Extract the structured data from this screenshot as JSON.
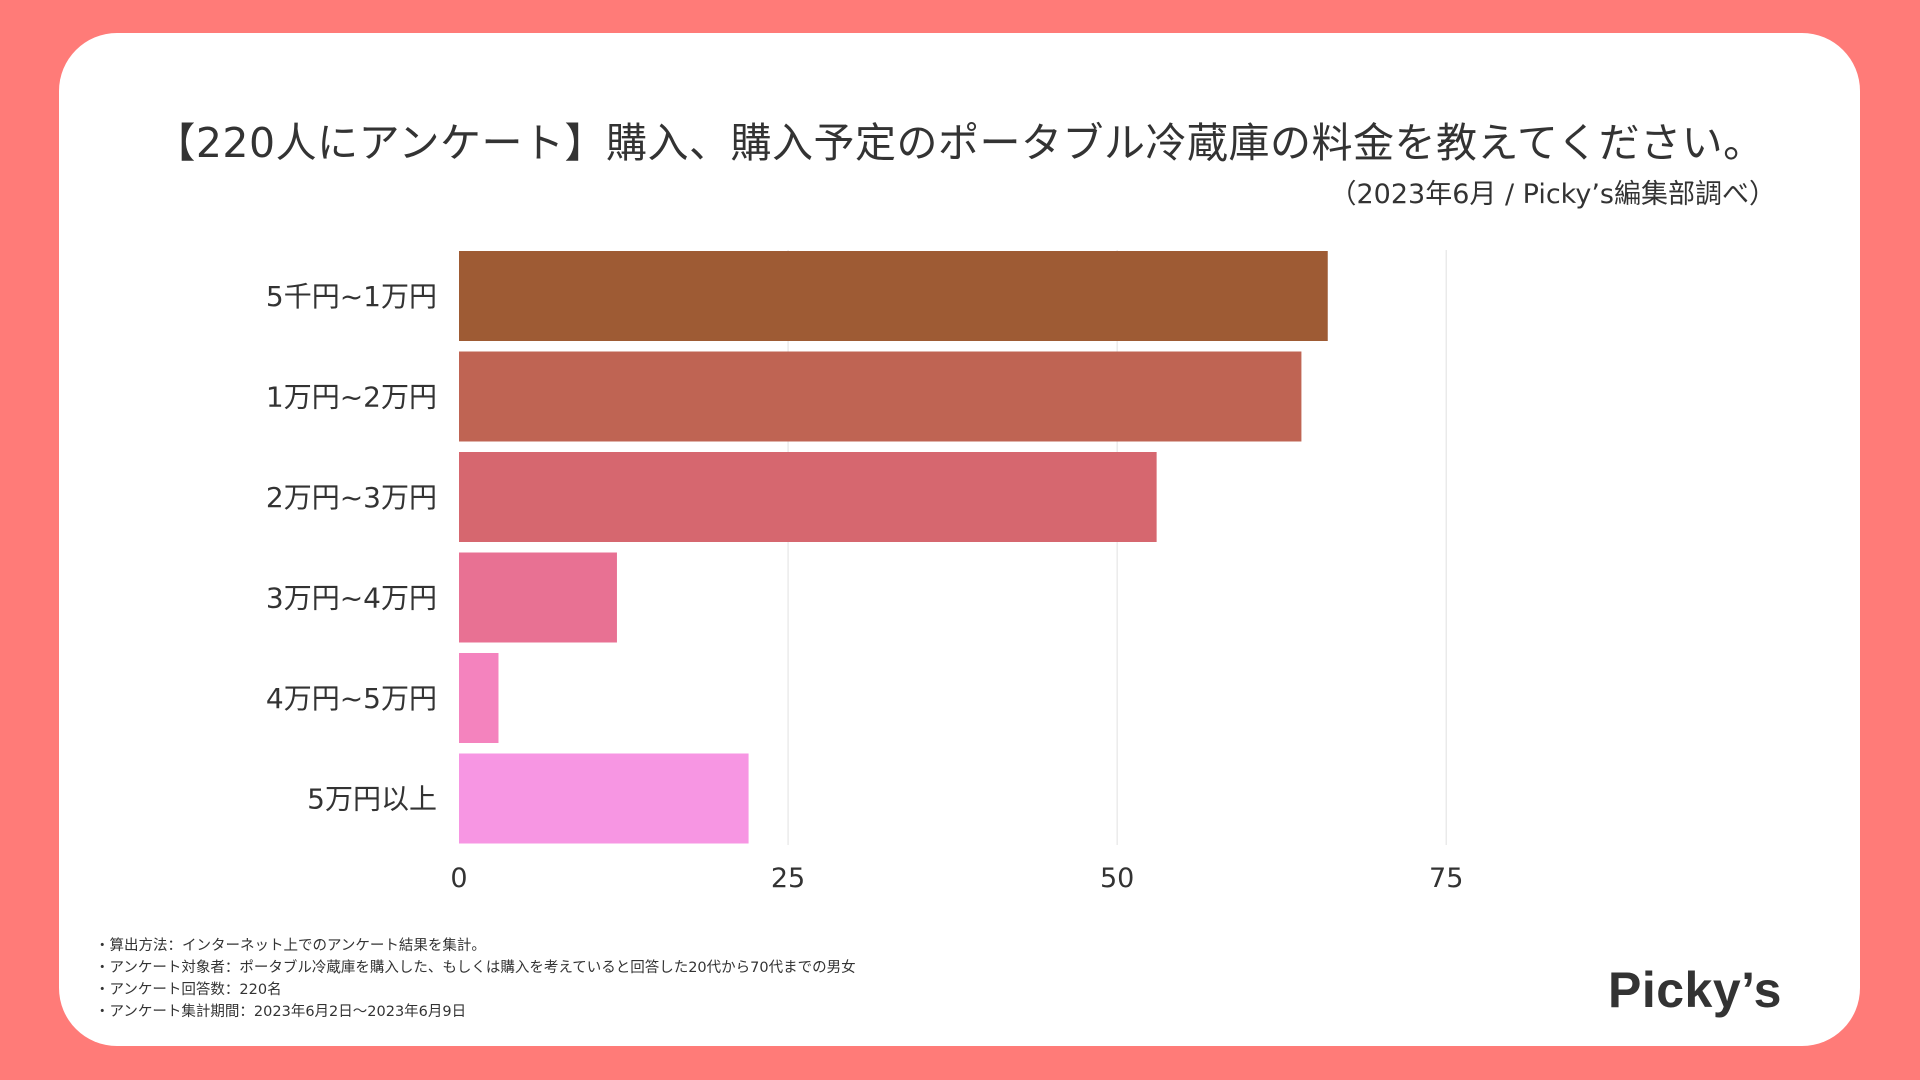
{
  "title": "【220人にアンケート】購入、購入予定のポータブル冷蔵庫の料金を教えてください。",
  "subtitle": "（2023年6月 / Picky’s編集部調べ）",
  "colors": {
    "background": "#ff7b78",
    "card": "#ffffff",
    "text": "#333333",
    "grid": "#e6e6e6"
  },
  "chart_data": {
    "type": "bar",
    "orientation": "horizontal",
    "title": "【220人にアンケート】購入、購入予定のポータブル冷蔵庫の料金を教えてください。",
    "xlabel": "",
    "ylabel": "",
    "xlim": [
      0,
      86
    ],
    "grid": true,
    "categories": [
      "5千円~1万円",
      "1万円~2万円",
      "2万円~3万円",
      "3万円~4万円",
      "4万円~5万円",
      "5万円以上"
    ],
    "values": [
      66,
      64,
      53,
      12,
      3,
      22
    ],
    "bar_colors": [
      "#9e5b34",
      "#bf6453",
      "#d6676f",
      "#e87193",
      "#f483be",
      "#f796e3"
    ],
    "ticks": [
      0,
      25,
      50,
      75
    ],
    "tick_labels": [
      "0",
      "25",
      "50",
      "75"
    ]
  },
  "notes": [
    "・算出方法：インターネット上でのアンケート結果を集計。",
    "・アンケート対象者：ポータブル冷蔵庫を購入した、もしくは購入を考えていると回答した20代から70代までの男女",
    "・アンケート回答数：220名",
    "・アンケート集計期間：2023年6月2日〜2023年6月9日"
  ],
  "logo": "Picky’s"
}
